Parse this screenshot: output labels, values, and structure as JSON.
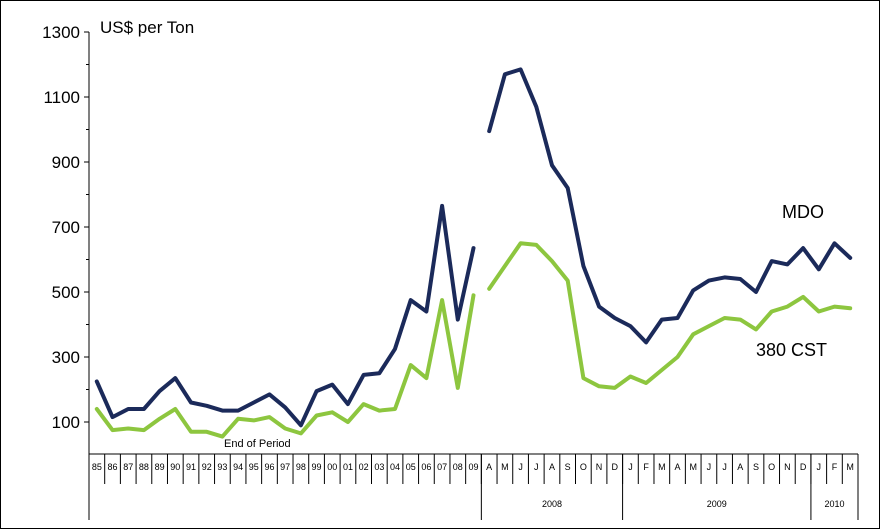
{
  "chart_data": {
    "type": "line",
    "ylabel": "US$ per Ton",
    "ylim": [
      0,
      1300
    ],
    "yticks": [
      100,
      300,
      500,
      700,
      900,
      1100,
      1300
    ],
    "annotation": "End of Period",
    "x": [
      "85",
      "86",
      "87",
      "88",
      "89",
      "90",
      "91",
      "92",
      "93",
      "94",
      "95",
      "96",
      "97",
      "98",
      "99",
      "00",
      "01",
      "02",
      "03",
      "04",
      "05",
      "06",
      "07",
      "08",
      "09",
      "A",
      "M",
      "J",
      "J",
      "A",
      "S",
      "O",
      "N",
      "D",
      "J",
      "F",
      "M",
      "A",
      "M",
      "J",
      "J",
      "A",
      "S",
      "O",
      "N",
      "D",
      "J",
      "F",
      "M"
    ],
    "year_groups": [
      {
        "label": "",
        "from": 0,
        "to": 24
      },
      {
        "label": "2008",
        "from": 25,
        "to": 33
      },
      {
        "label": "2009",
        "from": 34,
        "to": 45
      },
      {
        "label": "2010",
        "from": 46,
        "to": 48
      }
    ],
    "series": [
      {
        "name": "MDO",
        "color": "#1b2a5a",
        "values": [
          225,
          115,
          140,
          140,
          195,
          235,
          160,
          150,
          135,
          135,
          160,
          185,
          145,
          90,
          195,
          215,
          155,
          245,
          250,
          325,
          475,
          440,
          765,
          415,
          635,
          995,
          1170,
          1185,
          1070,
          890,
          820,
          580,
          455,
          420,
          395,
          345,
          415,
          420,
          505,
          535,
          545,
          540,
          500,
          595,
          585,
          635,
          570,
          650,
          605
        ]
      },
      {
        "name": "380 CST",
        "color": "#8dc63f",
        "values": [
          140,
          75,
          80,
          75,
          110,
          140,
          70,
          70,
          55,
          110,
          105,
          115,
          80,
          65,
          120,
          130,
          100,
          155,
          135,
          140,
          275,
          235,
          475,
          205,
          490,
          510,
          580,
          650,
          645,
          595,
          535,
          235,
          210,
          205,
          240,
          220,
          260,
          300,
          370,
          395,
          420,
          415,
          385,
          440,
          455,
          485,
          440,
          455,
          450
        ]
      }
    ]
  }
}
